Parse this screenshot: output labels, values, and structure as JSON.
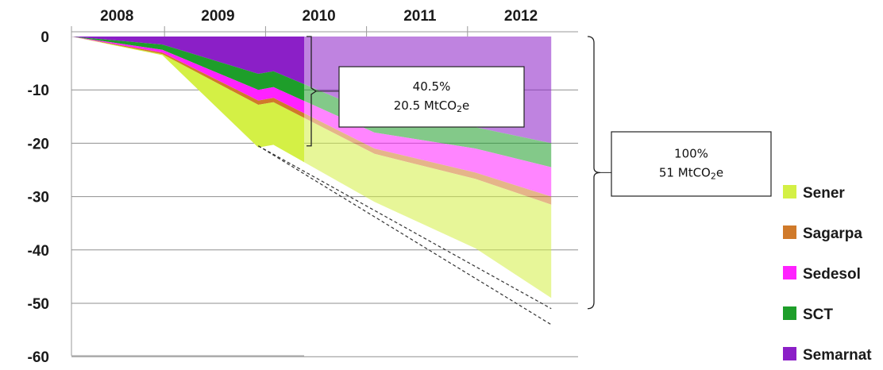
{
  "chart_data": {
    "type": "area",
    "stacked": true,
    "x": [
      2008.0,
      2008.9,
      2009.85,
      2010.0,
      2011.0,
      2012.0,
      2012.75
    ],
    "x_ticks": [
      "2008",
      "2009",
      "2010",
      "2011",
      "2012"
    ],
    "y_ticks": [
      "0",
      "-10",
      "-20",
      "-30",
      "-40",
      "-50",
      "-60"
    ],
    "ylim": [
      -60,
      0
    ],
    "grid": "horizontal",
    "legend_position": "right",
    "series": [
      {
        "name": "Semarnat",
        "color": "#8B1FC7",
        "values": [
          0,
          -1.5,
          -7.0,
          -6.5,
          -14.5,
          -17.0,
          -20.0
        ]
      },
      {
        "name": "SCT",
        "color": "#1E9E2A",
        "values": [
          0,
          -1.0,
          -3.0,
          -3.0,
          -3.5,
          -4.0,
          -4.5
        ]
      },
      {
        "name": "Sedesol",
        "color": "#FF22FF",
        "values": [
          0,
          -0.5,
          -2.0,
          -2.0,
          -3.0,
          -4.5,
          -5.5
        ]
      },
      {
        "name": "Sagarpa",
        "color": "#D07A2A",
        "values": [
          0,
          -0.3,
          -0.8,
          -0.8,
          -1.0,
          -1.2,
          -1.5
        ]
      },
      {
        "name": "Sener",
        "color": "#D4F045",
        "values": [
          0,
          -0.2,
          -8.0,
          -8.0,
          -9.0,
          -13.0,
          -17.5
        ]
      }
    ],
    "dashed_projection": {
      "upper": [
        [
          2009.85,
          -20.5
        ],
        [
          2012.75,
          -51.0
        ]
      ],
      "lower": [
        [
          2009.85,
          -20.5
        ],
        [
          2012.75,
          -54.0
        ]
      ]
    },
    "annotations": [
      {
        "line1": "40.5%",
        "line2_prefix": "20.5 MtCO",
        "line2_sub": "2",
        "line2_suffix": "e",
        "range": [
          0,
          -20.5
        ]
      },
      {
        "line1": "100%",
        "line2_prefix": "51 MtCO",
        "line2_sub": "2",
        "line2_suffix": "e",
        "range": [
          0,
          -51.0
        ]
      }
    ],
    "legend_order": [
      "Sener",
      "Sagarpa",
      "Sedesol",
      "SCT",
      "Semarnat"
    ]
  }
}
